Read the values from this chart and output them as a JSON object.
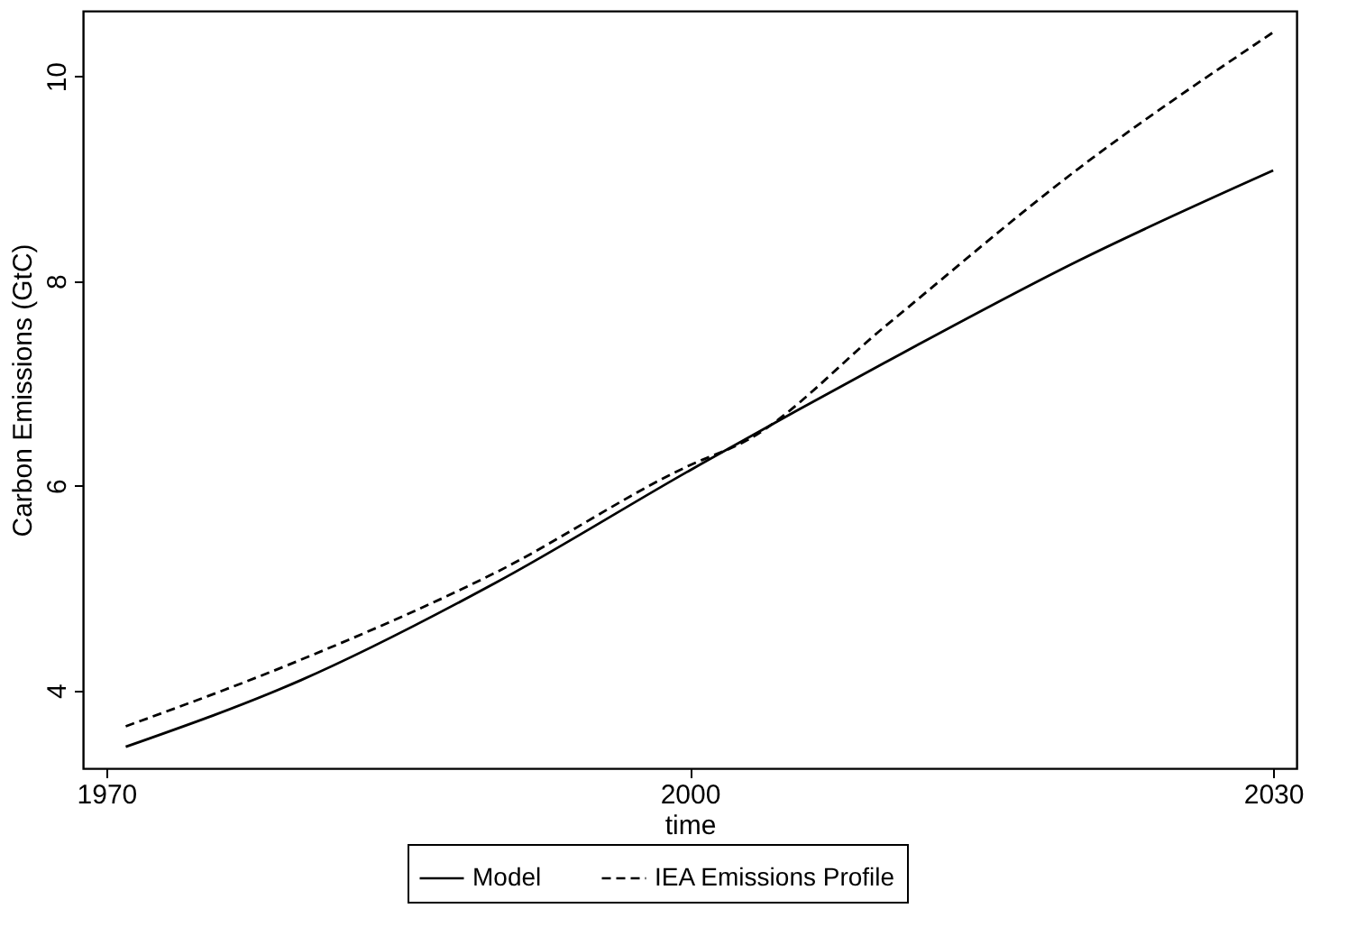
{
  "chart_data": {
    "type": "line",
    "xlabel": "time",
    "ylabel": "Carbon Emissions (GtC)",
    "xlim": [
      1968.8,
      2031.2
    ],
    "xticks": [
      1970,
      2000,
      2030
    ],
    "ylim": [
      3.24,
      10.64
    ],
    "yticks": [
      4,
      6,
      8,
      10
    ],
    "grid": false,
    "legend": "bottom",
    "marker": "none",
    "series": [
      {
        "name": "Model",
        "color": "#000000",
        "line_style": "solid",
        "x": [
          1971,
          1980,
          1990,
          2000,
          2010,
          2020,
          2030
        ],
        "values": [
          3.45,
          4.1,
          5.05,
          6.15,
          7.2,
          8.2,
          9.08
        ]
      },
      {
        "name": "IEA Emissions Profile",
        "color": "#000000",
        "line_style": "dashed",
        "x": [
          1971,
          1980,
          1990,
          2000,
          2003,
          2010,
          2020,
          2030
        ],
        "values": [
          3.65,
          4.3,
          5.15,
          6.2,
          6.45,
          7.55,
          9.1,
          10.43
        ]
      }
    ]
  }
}
